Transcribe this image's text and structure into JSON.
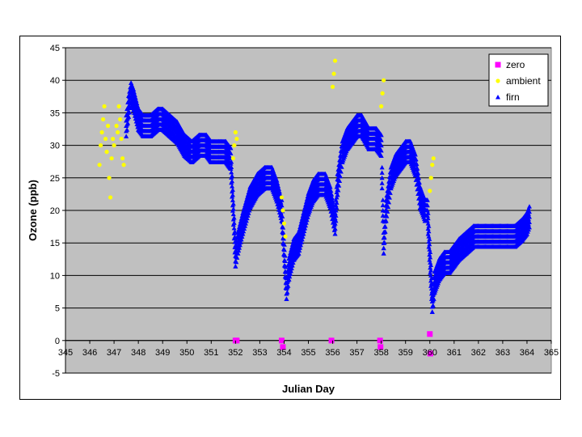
{
  "chart_data": {
    "type": "scatter",
    "xlabel": "Julian Day",
    "ylabel": "Ozone (ppb)",
    "xlim": [
      345,
      365
    ],
    "ylim": [
      -5,
      45
    ],
    "x_ticks": [
      345,
      346,
      347,
      348,
      349,
      350,
      351,
      352,
      353,
      354,
      355,
      356,
      357,
      358,
      359,
      360,
      361,
      362,
      363,
      364,
      365
    ],
    "y_ticks": [
      -5,
      0,
      5,
      10,
      15,
      20,
      25,
      30,
      35,
      40,
      45
    ],
    "grid": "horizontal",
    "plot_background": "#c0c0c0",
    "legend_position": "top-right",
    "series": [
      {
        "name": "zero",
        "marker": "square",
        "color": "#ff00ff",
        "points": [
          [
            352.0,
            0
          ],
          [
            352.05,
            0
          ],
          [
            353.9,
            0
          ],
          [
            353.95,
            -1
          ],
          [
            355.95,
            0
          ],
          [
            357.95,
            0
          ],
          [
            357.97,
            -1
          ],
          [
            360.0,
            1
          ],
          [
            360.02,
            -2
          ]
        ]
      },
      {
        "name": "ambient",
        "marker": "circle",
        "color": "#ffff00",
        "points": [
          [
            346.4,
            27
          ],
          [
            346.45,
            30
          ],
          [
            346.5,
            32
          ],
          [
            346.55,
            34
          ],
          [
            346.6,
            36
          ],
          [
            346.65,
            31
          ],
          [
            346.7,
            29
          ],
          [
            346.75,
            33
          ],
          [
            346.8,
            25
          ],
          [
            346.85,
            22
          ],
          [
            346.9,
            28
          ],
          [
            346.95,
            31
          ],
          [
            347.0,
            30
          ],
          [
            347.1,
            33
          ],
          [
            347.15,
            32
          ],
          [
            347.2,
            36
          ],
          [
            347.25,
            34
          ],
          [
            347.3,
            31
          ],
          [
            347.35,
            28
          ],
          [
            347.4,
            27
          ],
          [
            351.9,
            28
          ],
          [
            351.95,
            30
          ],
          [
            352.0,
            32
          ],
          [
            352.05,
            31
          ],
          [
            353.9,
            22
          ],
          [
            353.95,
            20
          ],
          [
            354.0,
            18
          ],
          [
            354.05,
            16
          ],
          [
            356.0,
            39
          ],
          [
            356.05,
            41
          ],
          [
            356.1,
            43
          ],
          [
            358.0,
            36
          ],
          [
            358.05,
            38
          ],
          [
            358.1,
            40
          ],
          [
            360.0,
            23
          ],
          [
            360.05,
            25
          ],
          [
            360.1,
            27
          ],
          [
            360.15,
            28
          ]
        ]
      },
      {
        "name": "firn",
        "marker": "triangle",
        "color": "#0000ff",
        "segments": [
          [
            347.5,
            33
          ],
          [
            347.6,
            36
          ],
          [
            347.7,
            38
          ],
          [
            347.8,
            37
          ],
          [
            348.0,
            34
          ],
          [
            348.2,
            33
          ],
          [
            348.5,
            33
          ],
          [
            348.8,
            34
          ],
          [
            349.0,
            34
          ],
          [
            349.3,
            33
          ],
          [
            349.6,
            32
          ],
          [
            349.9,
            30
          ],
          [
            350.2,
            29
          ],
          [
            350.5,
            30
          ],
          [
            350.8,
            30
          ],
          [
            351.0,
            29
          ],
          [
            351.3,
            29
          ],
          [
            351.6,
            29
          ],
          [
            351.8,
            28
          ],
          [
            352.0,
            13
          ],
          [
            352.1,
            15
          ],
          [
            352.3,
            18
          ],
          [
            352.6,
            22
          ],
          [
            352.9,
            24
          ],
          [
            353.2,
            25
          ],
          [
            353.5,
            25
          ],
          [
            353.7,
            23
          ],
          [
            353.9,
            20
          ],
          [
            354.1,
            8
          ],
          [
            354.2,
            11
          ],
          [
            354.4,
            14
          ],
          [
            354.6,
            15
          ],
          [
            354.8,
            18
          ],
          [
            355.0,
            21
          ],
          [
            355.2,
            23
          ],
          [
            355.4,
            24
          ],
          [
            355.7,
            24
          ],
          [
            355.9,
            22
          ],
          [
            356.1,
            18
          ],
          [
            356.2,
            24
          ],
          [
            356.4,
            29
          ],
          [
            356.6,
            31
          ],
          [
            356.8,
            32
          ],
          [
            357.0,
            33
          ],
          [
            357.2,
            33
          ],
          [
            357.5,
            31
          ],
          [
            357.8,
            31
          ],
          [
            358.0,
            30
          ],
          [
            358.1,
            15
          ],
          [
            358.2,
            20
          ],
          [
            358.4,
            25
          ],
          [
            358.6,
            27
          ],
          [
            358.8,
            28
          ],
          [
            359.0,
            29
          ],
          [
            359.2,
            29
          ],
          [
            359.4,
            27
          ],
          [
            359.6,
            22
          ],
          [
            359.8,
            20
          ],
          [
            359.9,
            20
          ],
          [
            360.1,
            6
          ],
          [
            360.2,
            9
          ],
          [
            360.4,
            11
          ],
          [
            360.6,
            12
          ],
          [
            360.8,
            12
          ],
          [
            361.0,
            13
          ],
          [
            361.2,
            14
          ],
          [
            361.5,
            15
          ],
          [
            361.8,
            16
          ],
          [
            362.0,
            16
          ],
          [
            362.3,
            16
          ],
          [
            362.6,
            16
          ],
          [
            362.9,
            16
          ],
          [
            363.2,
            16
          ],
          [
            363.5,
            16
          ],
          [
            363.8,
            17
          ],
          [
            364.0,
            18
          ],
          [
            364.1,
            19
          ]
        ]
      }
    ]
  }
}
